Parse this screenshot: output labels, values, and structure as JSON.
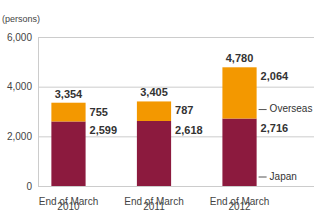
{
  "chart_data": {
    "type": "bar",
    "stacked": true,
    "data_labels": true,
    "y_label": "(persons)",
    "categories": [
      "End of March 2010",
      "End of March 2011",
      "End of March 2012"
    ],
    "series": [
      {
        "name": "Japan",
        "color": "#8c1a3e",
        "values": [
          2599,
          2618,
          2716
        ],
        "value_labels": [
          "2,599",
          "2,618",
          "2,716"
        ]
      },
      {
        "name": "Overseas",
        "color": "#f39800",
        "values": [
          755,
          787,
          2064
        ],
        "value_labels": [
          "755",
          "787",
          "2,064"
        ]
      }
    ],
    "totals": [
      3354,
      3405,
      4780
    ],
    "total_labels": [
      "3,354",
      "3,405",
      "4,780"
    ],
    "ylim": [
      0,
      6000
    ],
    "yticks": [
      0,
      {
        "value": 2000,
        "label": "2,000"
      },
      {
        "value": 4000,
        "label": "4,000"
      },
      {
        "value": 6000,
        "label": "6,000"
      }
    ],
    "grid": true
  }
}
